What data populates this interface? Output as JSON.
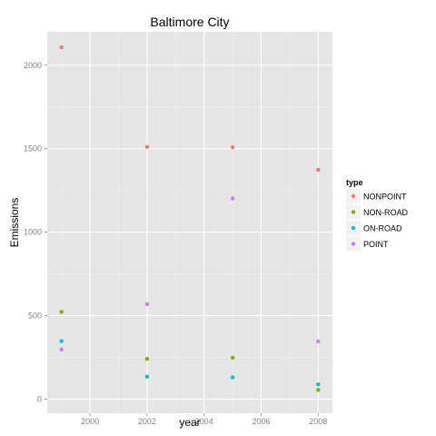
{
  "chart_data": {
    "type": "scatter",
    "title": "Baltimore City",
    "xlabel": "year",
    "ylabel": "Emissions",
    "xlim": [
      1998.5,
      2008.5
    ],
    "ylim": [
      -85,
      2200
    ],
    "x_ticks": [
      2000,
      2002,
      2004,
      2006,
      2008
    ],
    "y_ticks": [
      0,
      500,
      1000,
      1500,
      2000
    ],
    "grid": true,
    "legend_title": "type",
    "legend_position": "right",
    "series": [
      {
        "name": "NONPOINT",
        "color": "#F8766D",
        "x": [
          1999,
          2002,
          2005,
          2008
        ],
        "y": [
          2107,
          1510,
          1509,
          1373
        ]
      },
      {
        "name": "NON-ROAD",
        "color": "#7CAE00",
        "x": [
          1999,
          2002,
          2005,
          2008
        ],
        "y": [
          522,
          241,
          248,
          55
        ]
      },
      {
        "name": "ON-ROAD",
        "color": "#00BFC4",
        "x": [
          1999,
          2002,
          2005,
          2008
        ],
        "y": [
          347,
          134,
          130,
          88
        ]
      },
      {
        "name": "POINT",
        "color": "#C77CFF",
        "x": [
          1999,
          2002,
          2005,
          2008
        ],
        "y": [
          297,
          569,
          1202,
          345
        ]
      }
    ]
  }
}
